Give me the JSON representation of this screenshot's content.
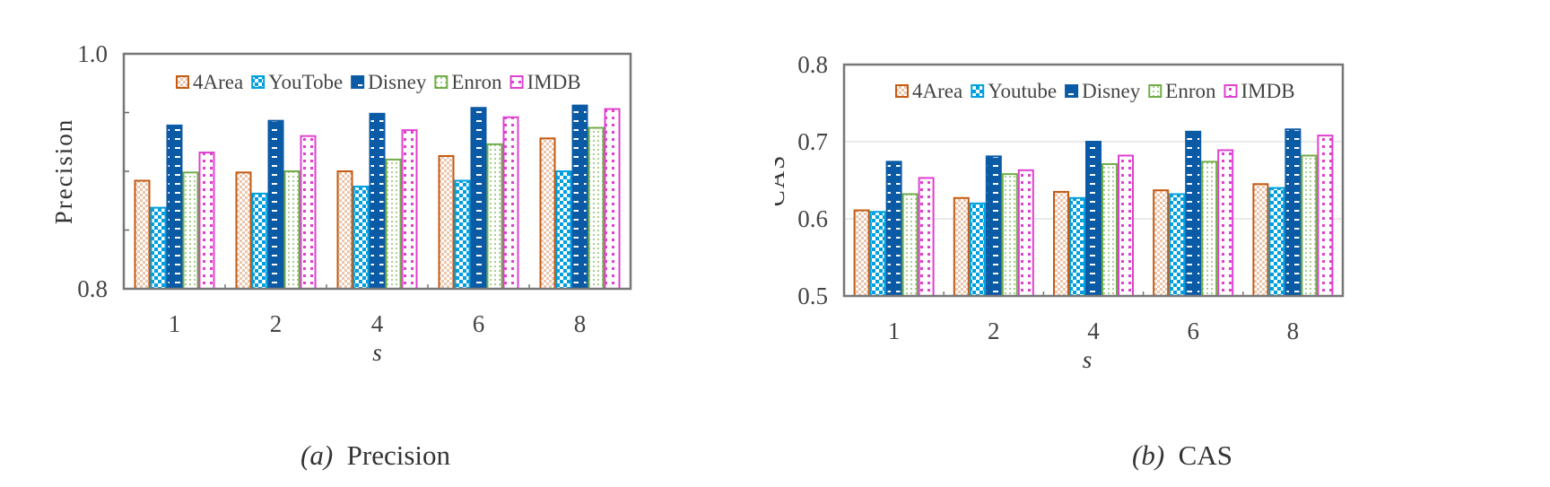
{
  "colors": {
    "4Area": "#c55a11",
    "YouTobe": "#00a0e0",
    "Youtube": "#00a0e0",
    "Disney": "#0b5aa5",
    "Enron": "#70ad47",
    "IMDB": "#e040d0"
  },
  "chart_data": [
    {
      "type": "bar",
      "title": "",
      "caption": {
        "label": "(a)",
        "text": "Precision"
      },
      "xlabel": "s",
      "ylabel": "Precision",
      "ylim": [
        0.8,
        1.0
      ],
      "yticks": [
        "0.8",
        "1.0"
      ],
      "grid": false,
      "legend": "top-center",
      "categories": [
        "1",
        "2",
        "4",
        "6",
        "8"
      ],
      "series": [
        {
          "name": "4Area",
          "values": [
            0.892,
            0.899,
            0.9,
            0.913,
            0.928
          ]
        },
        {
          "name": "YouTobe",
          "values": [
            0.869,
            0.881,
            0.887,
            0.892,
            0.9
          ]
        },
        {
          "name": "Disney",
          "values": [
            0.939,
            0.943,
            0.949,
            0.954,
            0.956
          ]
        },
        {
          "name": "Enron",
          "values": [
            0.899,
            0.9,
            0.91,
            0.923,
            0.937
          ]
        },
        {
          "name": "IMDB",
          "values": [
            0.916,
            0.93,
            0.935,
            0.946,
            0.953
          ]
        }
      ]
    },
    {
      "type": "bar",
      "title": "",
      "caption": {
        "label": "(b)",
        "text": "CAS"
      },
      "xlabel": "s",
      "ylabel": "CAS",
      "ylim": [
        0.5,
        0.8
      ],
      "yticks": [
        "0.5",
        "0.6",
        "0.7",
        "0.8"
      ],
      "grid": true,
      "legend": "top-center",
      "categories": [
        "1",
        "2",
        "4",
        "6",
        "8"
      ],
      "series": [
        {
          "name": "4Area",
          "values": [
            0.611,
            0.627,
            0.635,
            0.637,
            0.645
          ]
        },
        {
          "name": "Youtube",
          "values": [
            0.609,
            0.62,
            0.627,
            0.632,
            0.64
          ]
        },
        {
          "name": "Disney",
          "values": [
            0.674,
            0.681,
            0.7,
            0.713,
            0.716
          ]
        },
        {
          "name": "Enron",
          "values": [
            0.632,
            0.658,
            0.671,
            0.674,
            0.682
          ]
        },
        {
          "name": "IMDB",
          "values": [
            0.653,
            0.663,
            0.682,
            0.689,
            0.708
          ]
        }
      ]
    }
  ]
}
